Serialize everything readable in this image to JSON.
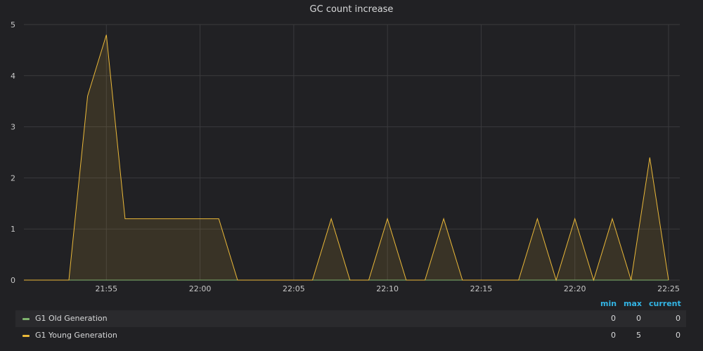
{
  "panel": {
    "title": "GC count increase"
  },
  "legend": {
    "headers": {
      "min": "min",
      "max": "max",
      "current": "current"
    },
    "rows": [
      {
        "name": "G1 Old Generation",
        "color": "#7eb26d",
        "min": "0",
        "max": "0",
        "current": "0"
      },
      {
        "name": "G1 Young Generation",
        "color": "#eab839",
        "min": "0",
        "max": "5",
        "current": "0"
      }
    ]
  },
  "chart_data": {
    "type": "area",
    "title": "GC count increase",
    "xlabel": "",
    "ylabel": "",
    "ylim": [
      0,
      5
    ],
    "y_ticks": [
      0,
      1,
      2,
      3,
      4,
      5
    ],
    "x_ticks": [
      "21:55",
      "22:00",
      "22:05",
      "22:10",
      "22:15",
      "22:20",
      "22:25"
    ],
    "x_range": [
      "21:50.6",
      "22:25.6"
    ],
    "grid": true,
    "legend": "bottom",
    "series": [
      {
        "name": "G1 Old Generation",
        "color": "#7eb26d",
        "x": [
          "21:50.6",
          "22:25"
        ],
        "y": [
          0,
          0
        ]
      },
      {
        "name": "G1 Young Generation",
        "color": "#eab839",
        "x": [
          "21:50.6",
          "21:53",
          "21:54",
          "21:55",
          "21:56",
          "22:01",
          "22:02",
          "22:06",
          "22:07",
          "22:08",
          "22:09",
          "22:10",
          "22:11",
          "22:12",
          "22:13",
          "22:14",
          "22:17",
          "22:18",
          "22:19",
          "22:20",
          "22:21",
          "22:22",
          "22:23",
          "22:24",
          "22:25"
        ],
        "y": [
          0,
          0,
          3.6,
          4.8,
          1.2,
          1.2,
          0,
          0,
          1.2,
          0,
          0,
          1.2,
          0,
          0,
          1.2,
          0,
          0,
          1.2,
          0,
          1.2,
          0,
          1.2,
          0,
          2.4,
          0
        ]
      }
    ]
  }
}
